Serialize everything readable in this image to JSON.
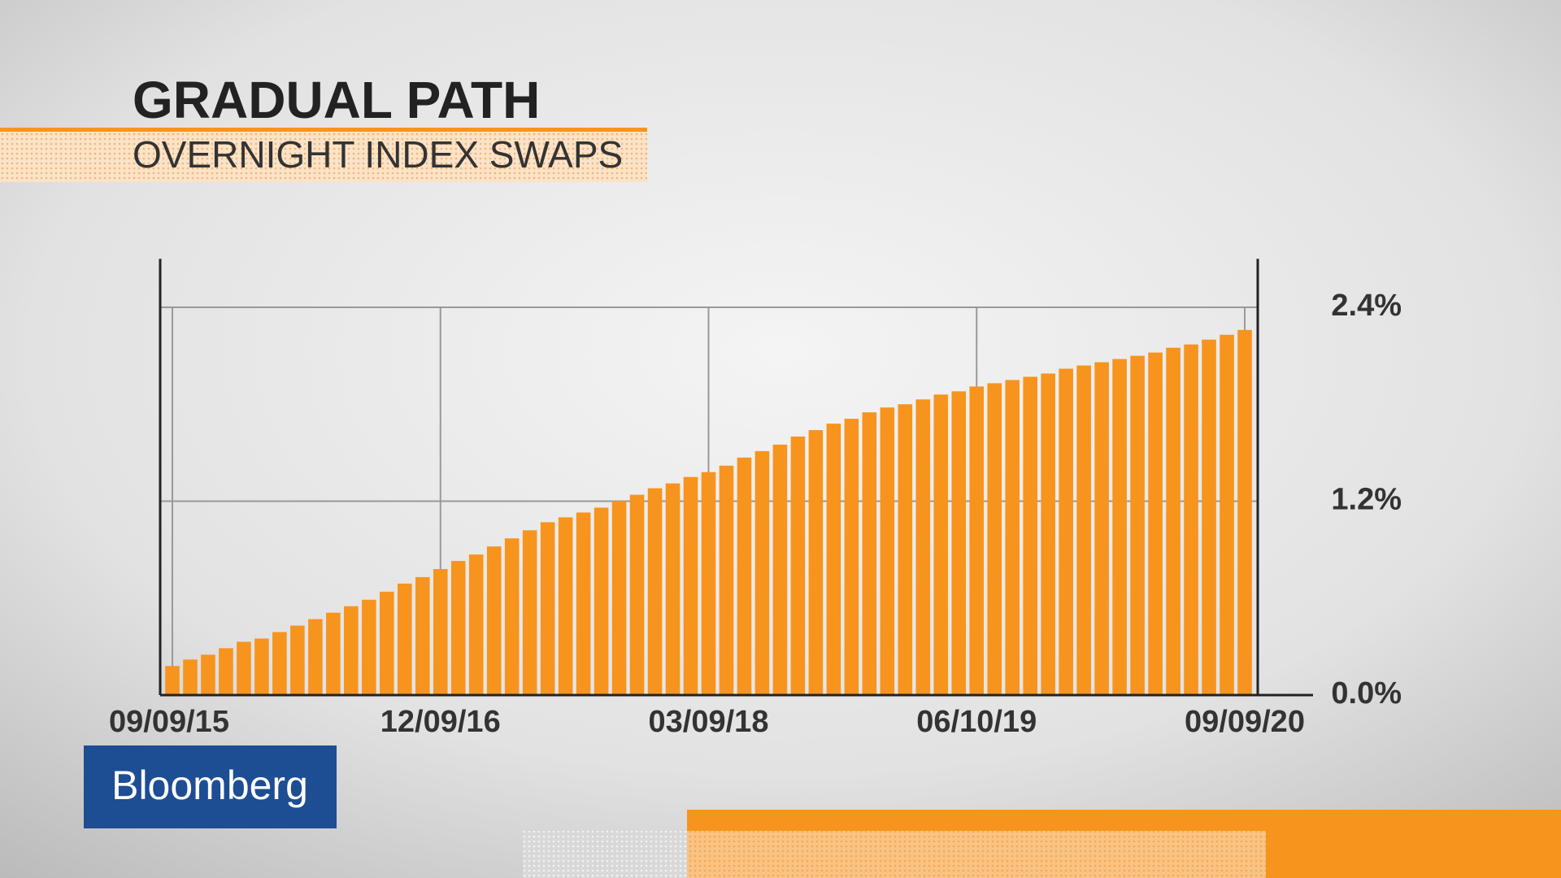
{
  "chart_data": {
    "type": "bar",
    "title": "GRADUAL PATH",
    "subtitle": "OVERNIGHT INDEX SWAPS",
    "categories": [
      "09/09/15",
      null,
      null,
      null,
      null,
      null,
      null,
      null,
      null,
      null,
      null,
      null,
      null,
      null,
      null,
      "12/09/16",
      null,
      null,
      null,
      null,
      null,
      null,
      null,
      null,
      null,
      null,
      null,
      null,
      null,
      null,
      "03/09/18",
      null,
      null,
      null,
      null,
      null,
      null,
      null,
      null,
      null,
      null,
      null,
      null,
      null,
      null,
      "06/10/19",
      null,
      null,
      null,
      null,
      null,
      null,
      null,
      null,
      null,
      null,
      null,
      null,
      null,
      null,
      "09/09/20"
    ],
    "values": [
      0.18,
      0.22,
      0.25,
      0.29,
      0.33,
      0.35,
      0.39,
      0.43,
      0.47,
      0.51,
      0.55,
      0.59,
      0.64,
      0.69,
      0.73,
      0.78,
      0.83,
      0.87,
      0.92,
      0.97,
      1.02,
      1.07,
      1.1,
      1.13,
      1.16,
      1.2,
      1.24,
      1.28,
      1.31,
      1.35,
      1.38,
      1.42,
      1.47,
      1.51,
      1.55,
      1.6,
      1.64,
      1.68,
      1.71,
      1.75,
      1.78,
      1.8,
      1.83,
      1.86,
      1.88,
      1.91,
      1.93,
      1.95,
      1.97,
      1.99,
      2.02,
      2.04,
      2.06,
      2.08,
      2.1,
      2.12,
      2.15,
      2.17,
      2.2,
      2.23,
      2.26
    ],
    "color": "#f7941d",
    "ylim": [
      0,
      2.7
    ],
    "yticks": [
      {
        "value": 0,
        "label": "0.0%"
      },
      {
        "value": 1.2,
        "label": "1.2%"
      },
      {
        "value": 2.4,
        "label": "2.4%"
      }
    ],
    "grid": true
  },
  "logo": "Bloomberg"
}
